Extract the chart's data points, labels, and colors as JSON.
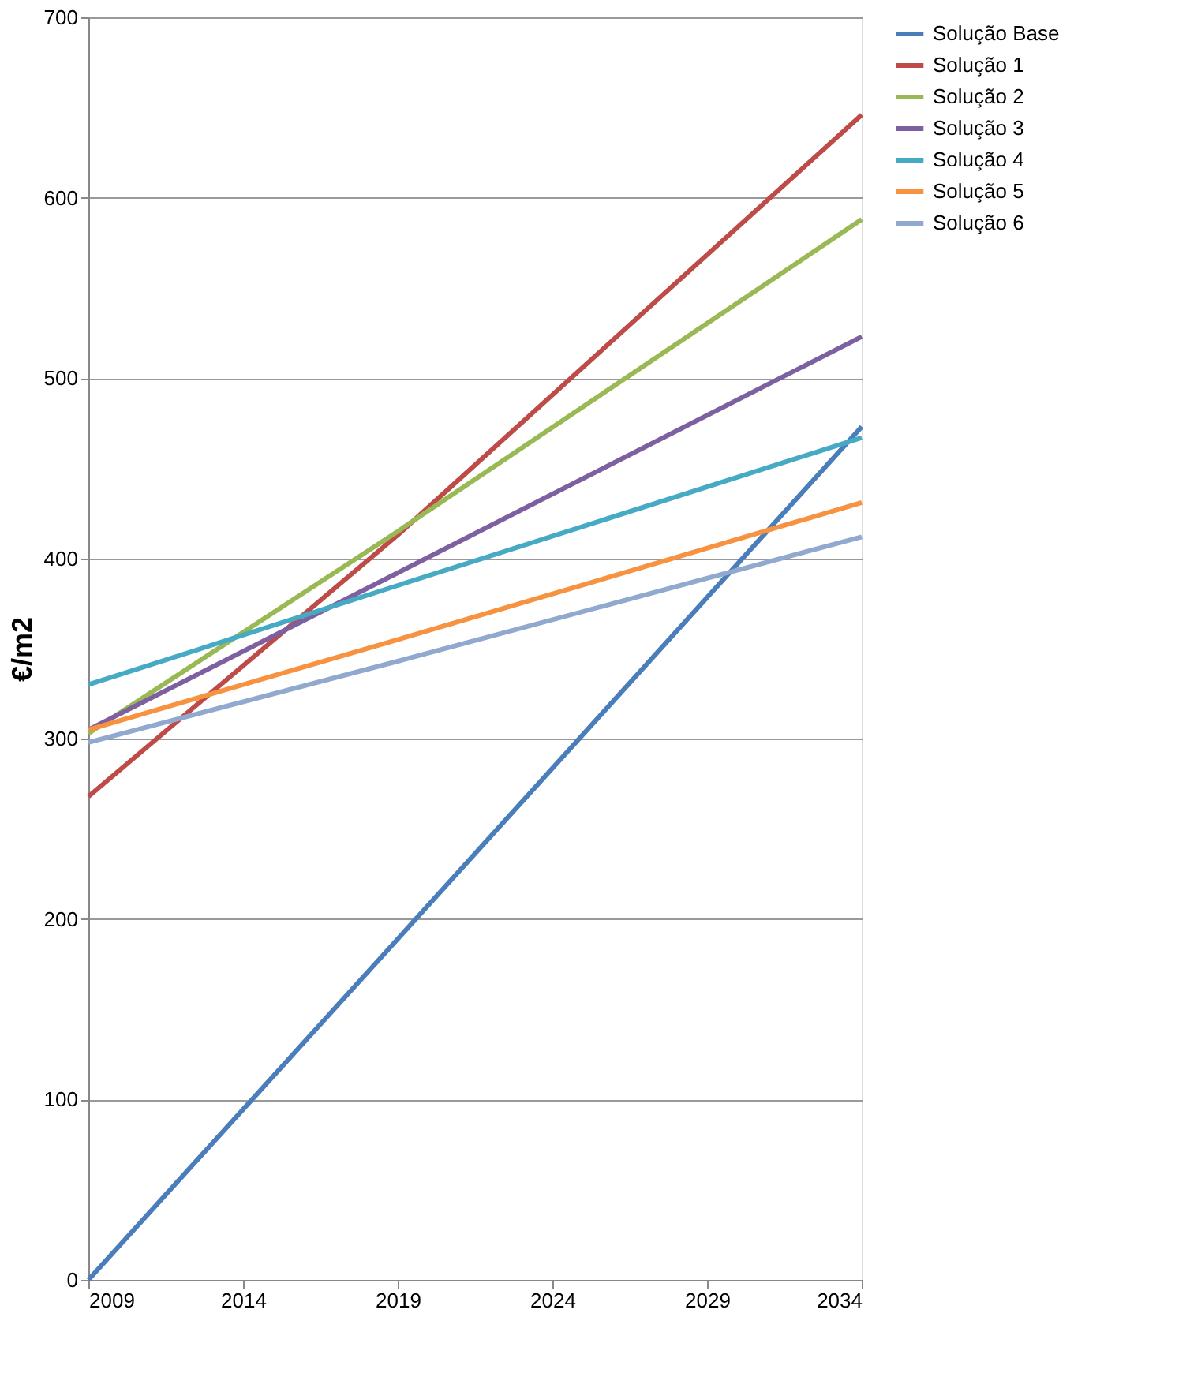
{
  "chart_data": {
    "type": "line",
    "ylabel": "€/m2",
    "x": [
      2009,
      2019,
      2034
    ],
    "series": [
      {
        "name": "Solução Base",
        "color": "#4a7ebb",
        "values": [
          0,
          189,
          473
        ]
      },
      {
        "name": "Solução 1",
        "color": "#be4b48",
        "values": [
          268,
          413,
          646
        ]
      },
      {
        "name": "Solução 2",
        "color": "#98b954",
        "values": [
          303,
          415,
          588
        ]
      },
      {
        "name": "Solução 3",
        "color": "#7d60a0",
        "values": [
          305,
          392,
          523
        ]
      },
      {
        "name": "Solução 4",
        "color": "#46aac5",
        "values": [
          330,
          385,
          467
        ]
      },
      {
        "name": "Solução 5",
        "color": "#f69240",
        "values": [
          305,
          355,
          431
        ]
      },
      {
        "name": "Solução 6",
        "color": "#92a9cf",
        "values": [
          298,
          343,
          412
        ]
      }
    ],
    "xlim": [
      2009,
      2034
    ],
    "xticks": [
      2009,
      2014,
      2019,
      2024,
      2029,
      2034
    ],
    "ylim": [
      0,
      700
    ],
    "yticks": [
      0,
      100,
      200,
      300,
      400,
      500,
      600,
      700
    ],
    "grid": "y",
    "legend": "right"
  }
}
